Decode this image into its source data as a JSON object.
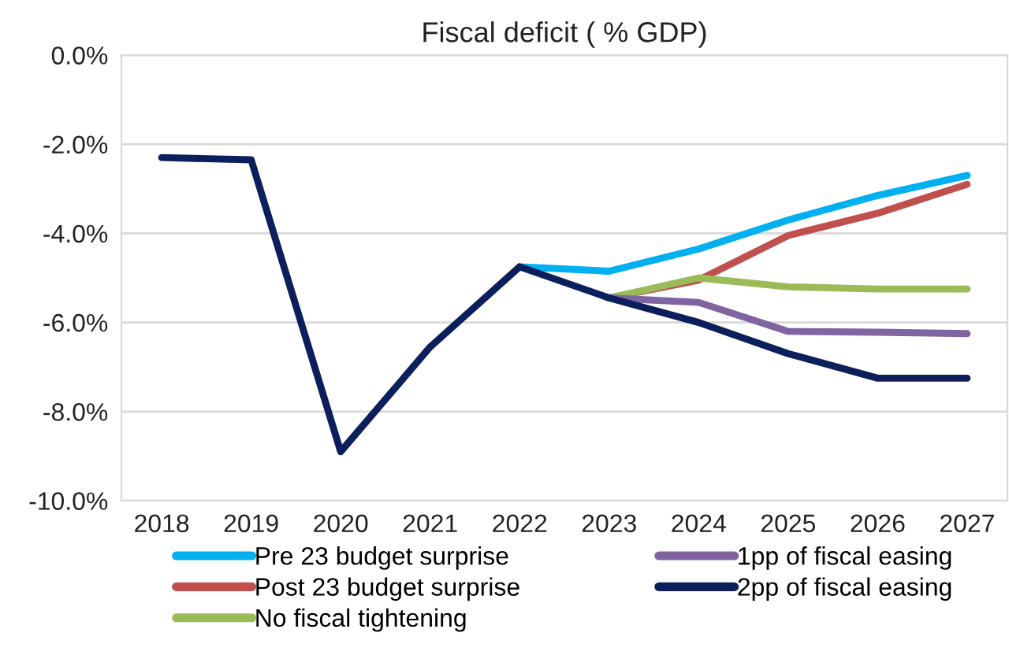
{
  "chart_data": {
    "type": "line",
    "title": "Fiscal deficit ( % GDP)",
    "categories": [
      "2018",
      "2019",
      "2020",
      "2021",
      "2022",
      "2023",
      "2024",
      "2025",
      "2026",
      "2027"
    ],
    "series": [
      {
        "name": "Pre 23 budget surprise",
        "color": "#00b0f0",
        "values": [
          null,
          null,
          null,
          null,
          -4.75,
          -4.85,
          -4.35,
          -3.7,
          -3.15,
          -2.7
        ]
      },
      {
        "name": "Post 23 budget surprise",
        "color": "#c0504d",
        "values": [
          null,
          null,
          null,
          null,
          null,
          -5.45,
          -5.05,
          -4.05,
          -3.55,
          -2.9
        ]
      },
      {
        "name": "No fiscal tightening",
        "color": "#9bbb59",
        "values": [
          null,
          null,
          null,
          null,
          null,
          -5.45,
          -5.0,
          -5.2,
          -5.25,
          -5.25
        ]
      },
      {
        "name": "1pp of fiscal easing",
        "color": "#8064a2",
        "values": [
          null,
          null,
          null,
          null,
          null,
          -5.45,
          -5.55,
          -6.2,
          -6.22,
          -6.25
        ]
      },
      {
        "name": "2pp of fiscal easing",
        "color": "#0c1f5c",
        "values": [
          -2.3,
          -2.35,
          -8.9,
          -6.55,
          -4.75,
          -5.45,
          -6.0,
          -6.7,
          -7.25,
          -7.25
        ]
      }
    ],
    "ylim": [
      -10,
      0
    ],
    "yticks": [
      {
        "value": 0,
        "label": "0.0%"
      },
      {
        "value": -2,
        "label": "-2.0%"
      },
      {
        "value": -4,
        "label": "-4.0%"
      },
      {
        "value": -6,
        "label": "-6.0%"
      },
      {
        "value": -8,
        "label": "-8.0%"
      },
      {
        "value": -10,
        "label": "-10.0%"
      }
    ],
    "grid": "y",
    "legend": "bottom",
    "marker": "none",
    "line_style": "solid"
  }
}
